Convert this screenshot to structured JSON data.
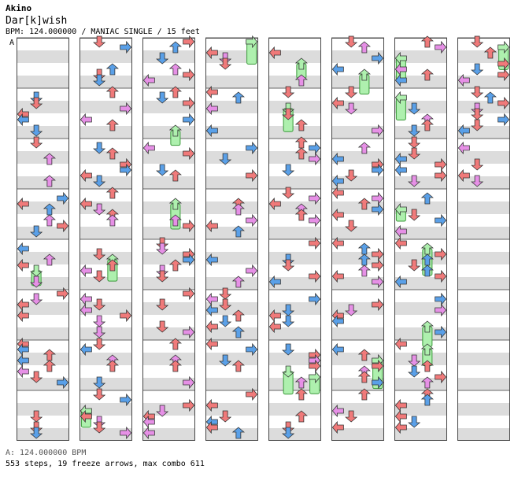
{
  "header": {
    "artist": "Akino",
    "title": "Dar[k]wish",
    "meta": "BPM: 124.000000 / MANIAC SINGLE / 15 feet"
  },
  "footer": {
    "bpm_note": "A: 124.000000 BPM",
    "stats": "553 steps, 19 freeze arrows, max combo 611"
  },
  "chart_meta": {
    "bpm_marker": "A",
    "columns": 8,
    "measures_per_column": 8,
    "lanes": [
      "left",
      "down",
      "up",
      "right"
    ],
    "note_colors": {
      "quarter": "#f07a7a",
      "eighth": "#5aa0e8",
      "sixteenth": "#e690e6",
      "freeze": "#aef0ae"
    },
    "stripe_color": "#dcdcdc"
  }
}
